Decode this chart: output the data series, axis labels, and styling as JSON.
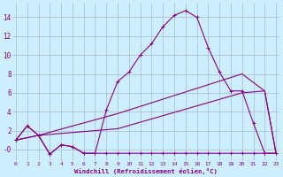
{
  "xlabel": "Windchill (Refroidissement éolien,°C)",
  "background_color": "#cceeff",
  "grid_color": "#aabbcc",
  "line_color": "#880088",
  "x_ticks": [
    0,
    1,
    2,
    3,
    4,
    5,
    6,
    7,
    8,
    9,
    10,
    11,
    12,
    13,
    14,
    15,
    16,
    17,
    18,
    19,
    20,
    21,
    22,
    23
  ],
  "y_ticks": [
    0,
    2,
    4,
    6,
    8,
    10,
    12,
    14
  ],
  "y_tick_labels": [
    "-0",
    "2",
    "4",
    "6",
    "8",
    "10",
    "12",
    "14"
  ],
  "ylim": [
    -1.2,
    15.5
  ],
  "xlim": [
    -0.3,
    23.3
  ],
  "line_main_x": [
    0,
    1,
    2,
    3,
    4,
    5,
    6,
    7,
    8,
    9,
    10,
    11,
    12,
    13,
    14,
    15,
    16,
    17,
    18,
    19,
    20,
    21,
    22,
    23
  ],
  "line_main_y": [
    1.0,
    2.5,
    1.5,
    -0.5,
    0.5,
    0.3,
    -0.4,
    -0.4,
    4.2,
    7.2,
    8.2,
    10.0,
    11.2,
    13.0,
    14.2,
    14.7,
    14.0,
    10.8,
    8.2,
    6.2,
    6.2,
    2.8,
    -0.4,
    -0.4
  ],
  "line_flat_x": [
    0,
    1,
    2,
    3,
    4,
    5,
    6,
    7,
    8,
    9,
    10,
    11,
    12,
    13,
    14,
    15,
    16,
    17,
    18,
    19,
    20,
    21,
    22,
    23
  ],
  "line_flat_y": [
    1.0,
    2.5,
    1.5,
    -0.5,
    0.5,
    0.3,
    -0.4,
    -0.4,
    -0.4,
    -0.4,
    -0.4,
    -0.4,
    -0.4,
    -0.4,
    -0.4,
    -0.4,
    -0.4,
    -0.4,
    -0.4,
    -0.4,
    -0.4,
    -0.4,
    -0.4,
    -0.4
  ],
  "line_diag1_x": [
    0,
    2,
    9,
    20,
    22,
    23
  ],
  "line_diag1_y": [
    1.0,
    1.5,
    3.8,
    8.0,
    6.2,
    -0.4
  ],
  "line_diag2_x": [
    0,
    2,
    9,
    20,
    22,
    23
  ],
  "line_diag2_y": [
    1.0,
    1.5,
    2.2,
    6.0,
    6.2,
    -0.4
  ]
}
